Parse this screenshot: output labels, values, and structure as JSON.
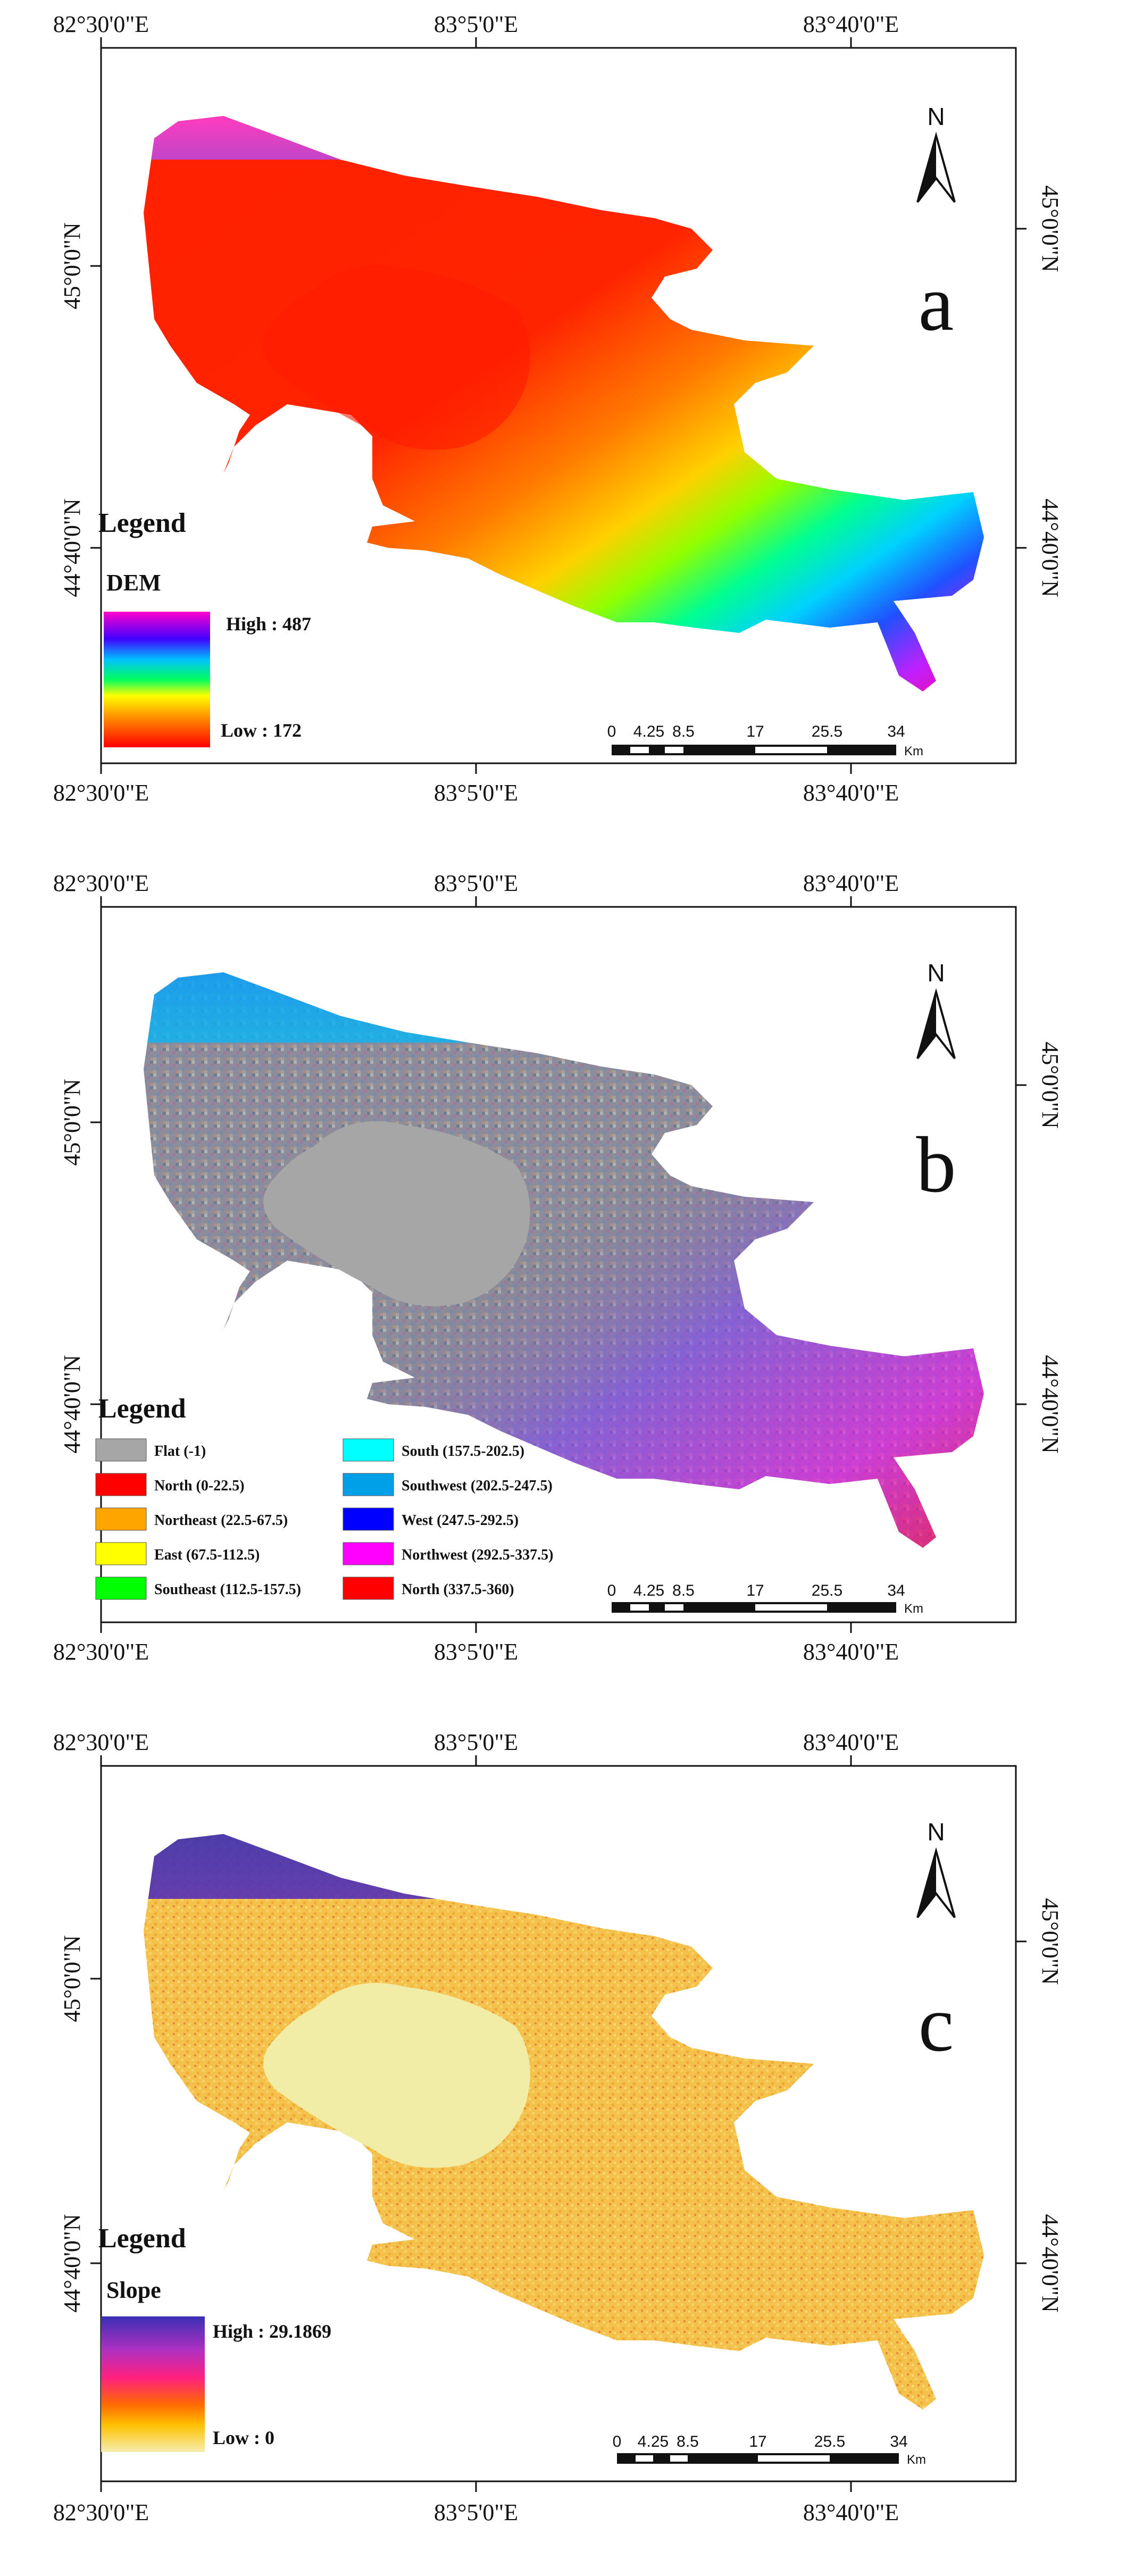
{
  "lon_labels": [
    "82°30'0\"E",
    "83°5'0\"E",
    "83°40'0\"E"
  ],
  "lat_labels": [
    "45°0'0\"N",
    "44°40'0\"N"
  ],
  "north_label": "N",
  "scale_bar": {
    "ticks": [
      "0",
      "4.25",
      "8.5",
      "17",
      "25.5",
      "34"
    ],
    "unit": "Km"
  },
  "panels": [
    {
      "letter": "a",
      "legend_title": "Legend",
      "legend_subtitle": "DEM",
      "high_label": "High : 487",
      "low_label": "Low : 172",
      "ramp_colors": [
        "#ff00cc",
        "#0000ff",
        "#00ffff",
        "#00ff00",
        "#ffff00",
        "#ff8000",
        "#ff0000"
      ]
    },
    {
      "letter": "b",
      "legend_title": "Legend",
      "aspect_classes": [
        {
          "label": "Flat (-1)",
          "color": "#a6a6a6"
        },
        {
          "label": "North (0-22.5)",
          "color": "#ff0000"
        },
        {
          "label": "Northeast (22.5-67.5)",
          "color": "#ffa500"
        },
        {
          "label": "East (67.5-112.5)",
          "color": "#ffff00"
        },
        {
          "label": "Southeast (112.5-157.5)",
          "color": "#00ff00"
        },
        {
          "label": "South (157.5-202.5)",
          "color": "#00ffff"
        },
        {
          "label": "Southwest (202.5-247.5)",
          "color": "#00a0e9"
        },
        {
          "label": "West (247.5-292.5)",
          "color": "#0000ff"
        },
        {
          "label": "Northwest (292.5-337.5)",
          "color": "#ff00ff"
        },
        {
          "label": "North (337.5-360)",
          "color": "#ff0000"
        }
      ]
    },
    {
      "letter": "c",
      "legend_title": "Legend",
      "legend_subtitle": "Slope",
      "high_label": "High : 29.1869",
      "low_label": "Low : 0",
      "ramp_colors": [
        "#3a2fb5",
        "#b030c0",
        "#ff2080",
        "#ff6a00",
        "#ffc000",
        "#f6eeb0"
      ]
    }
  ]
}
